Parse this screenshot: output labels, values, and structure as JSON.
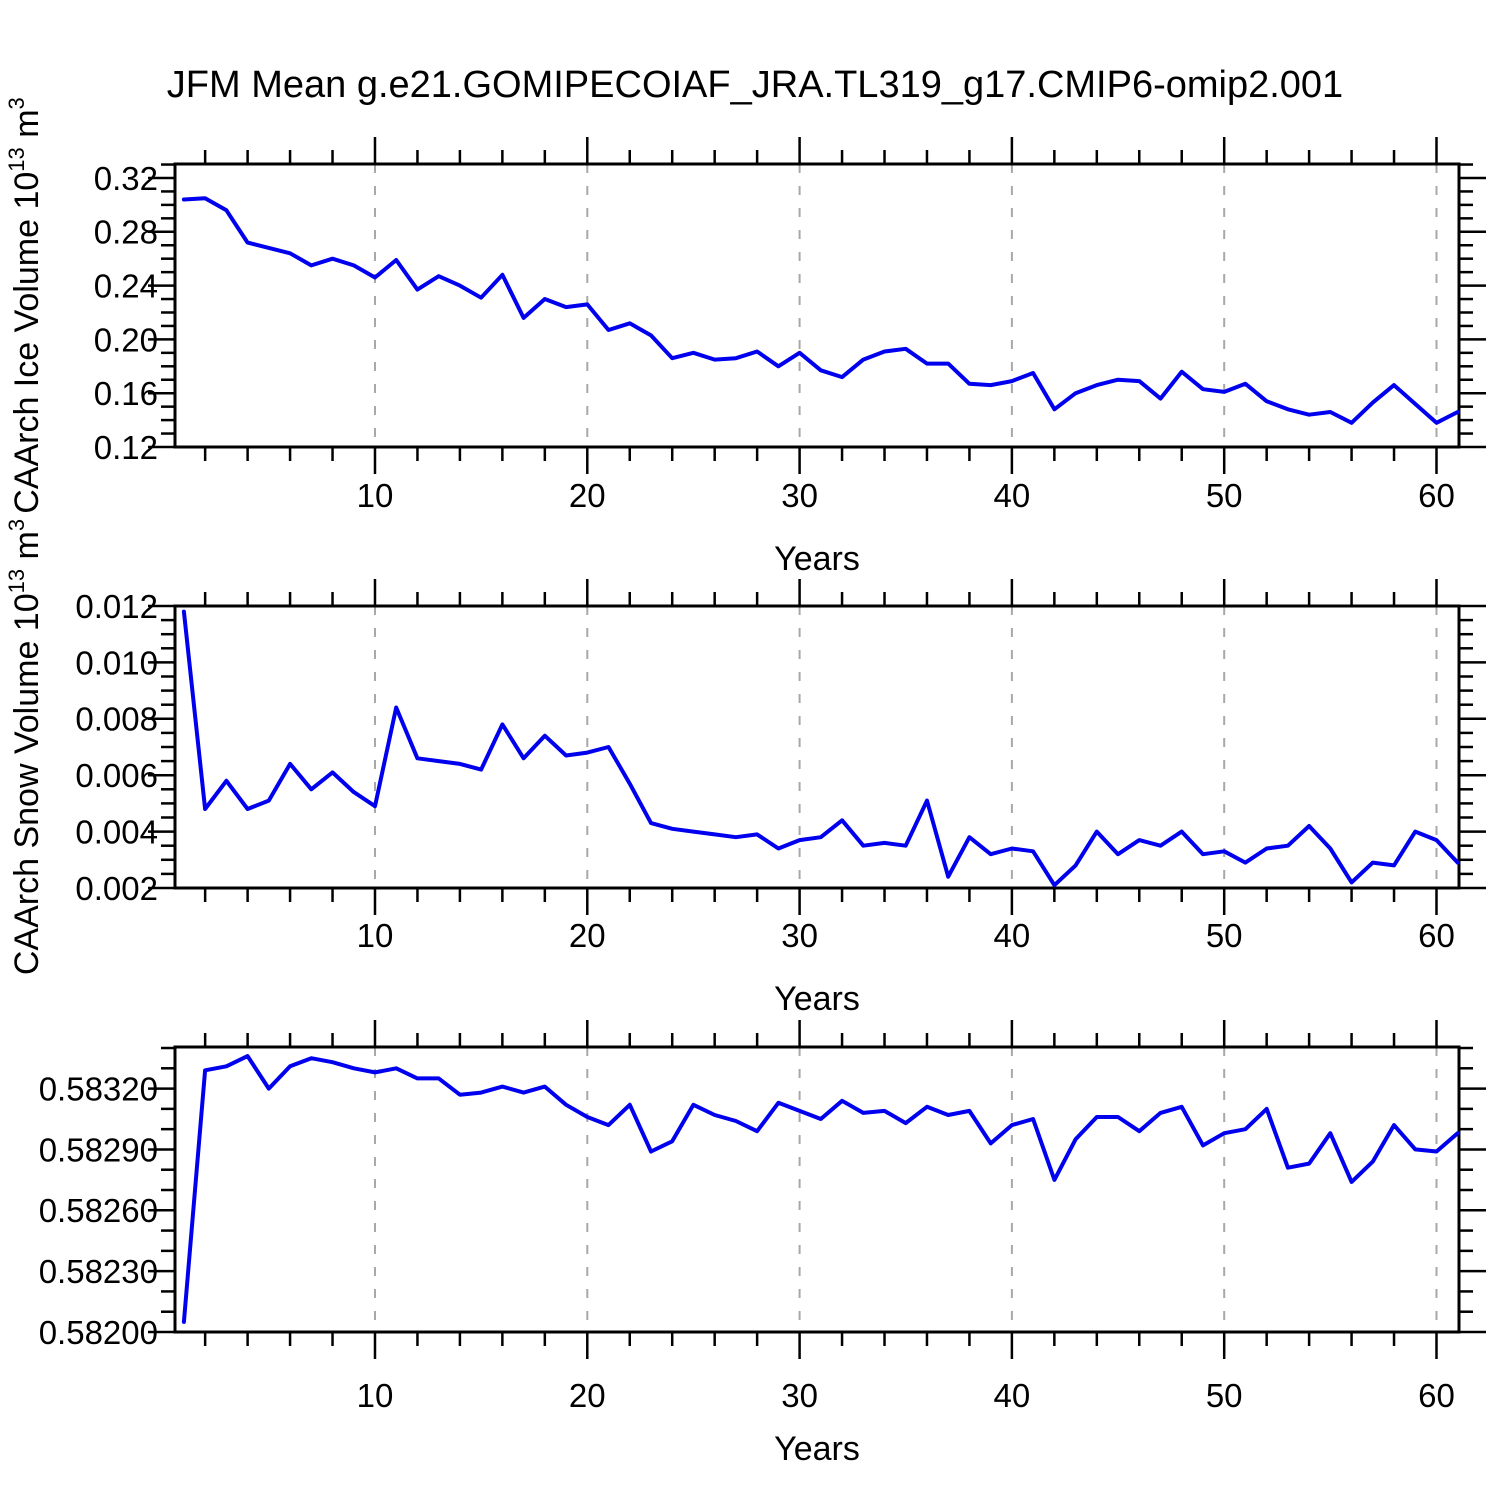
{
  "title": "JFM Mean g.e21.GOMIPECOIAF_JRA.TL319_g17.CMIP6-omip2.001",
  "colors": {
    "line": "#0000EE",
    "grid": "#A8A8A8",
    "frame": "#000000",
    "text": "#000000"
  },
  "chart_data": [
    {
      "type": "line",
      "ylabel": "CAArch Ice Volume 10¹³ m³",
      "ylabel_parts": [
        {
          "text": "CAArch Ice Volume 10",
          "sup": false
        },
        {
          "text": "13",
          "sup": true
        },
        {
          "text": " m",
          "sup": false
        },
        {
          "text": "3",
          "sup": true
        }
      ],
      "xlabel": "Years",
      "x_first_year": 1,
      "values": [
        0.304,
        0.305,
        0.296,
        0.272,
        0.268,
        0.264,
        0.255,
        0.26,
        0.255,
        0.246,
        0.259,
        0.237,
        0.247,
        0.24,
        0.231,
        0.248,
        0.216,
        0.23,
        0.224,
        0.226,
        0.207,
        0.212,
        0.203,
        0.186,
        0.19,
        0.185,
        0.186,
        0.191,
        0.18,
        0.19,
        0.177,
        0.172,
        0.185,
        0.191,
        0.193,
        0.182,
        0.182,
        0.167,
        0.166,
        0.169,
        0.175,
        0.148,
        0.16,
        0.166,
        0.17,
        0.169,
        0.156,
        0.176,
        0.163,
        0.161,
        0.167,
        0.154,
        0.148,
        0.144,
        0.146,
        0.138,
        0.153,
        0.166,
        0.152,
        0.138,
        0.146
      ],
      "ylim": [
        0.12,
        0.3304
      ],
      "yticks": [
        0.12,
        0.16,
        0.2,
        0.24,
        0.28,
        0.32
      ],
      "ytick_labels": [
        "0.12",
        "0.16",
        "0.20",
        "0.24",
        "0.28",
        "0.32"
      ],
      "yminor_step": 0.01,
      "xlim": [
        0.58,
        61.06
      ],
      "xticks": [
        10,
        20,
        30,
        40,
        50,
        60
      ],
      "xtick_labels": [
        "10",
        "20",
        "30",
        "40",
        "50",
        "60"
      ],
      "xminor_step": 2,
      "grid": "vertical-dashed"
    },
    {
      "type": "line",
      "ylabel": "CAArch Snow Volume 10¹³ m³",
      "ylabel_parts": [
        {
          "text": "CAArch Snow Volume 10",
          "sup": false
        },
        {
          "text": "13",
          "sup": true
        },
        {
          "text": " m",
          "sup": false
        },
        {
          "text": "3",
          "sup": true
        }
      ],
      "xlabel": "Years",
      "x_first_year": 1,
      "values": [
        0.0118,
        0.0048,
        0.0058,
        0.0048,
        0.0051,
        0.0064,
        0.0055,
        0.0061,
        0.0054,
        0.0049,
        0.0084,
        0.0066,
        0.0065,
        0.0064,
        0.0062,
        0.0078,
        0.0066,
        0.0074,
        0.0067,
        0.0068,
        0.007,
        0.0057,
        0.0043,
        0.0041,
        0.004,
        0.0039,
        0.0038,
        0.0039,
        0.0034,
        0.0037,
        0.0038,
        0.0044,
        0.0035,
        0.0036,
        0.0035,
        0.0051,
        0.0024,
        0.0038,
        0.0032,
        0.0034,
        0.0033,
        0.0021,
        0.0028,
        0.004,
        0.0032,
        0.0037,
        0.0035,
        0.004,
        0.0032,
        0.0033,
        0.0029,
        0.0034,
        0.0035,
        0.0042,
        0.0034,
        0.0022,
        0.0029,
        0.0028,
        0.004,
        0.0037,
        0.0029
      ],
      "ylim": [
        0.002,
        0.012
      ],
      "yticks": [
        0.002,
        0.004,
        0.006,
        0.008,
        0.01,
        0.012
      ],
      "ytick_labels": [
        "0.002",
        "0.004",
        "0.006",
        "0.008",
        "0.010",
        "0.012"
      ],
      "yminor_step": 0.0005,
      "xlim": [
        0.58,
        61.06
      ],
      "xticks": [
        10,
        20,
        30,
        40,
        50,
        60
      ],
      "xtick_labels": [
        "10",
        "20",
        "30",
        "40",
        "50",
        "60"
      ],
      "xminor_step": 2,
      "grid": "vertical-dashed"
    },
    {
      "type": "line",
      "ylabel": null,
      "ylabel_parts": [],
      "xlabel": "Years",
      "x_first_year": 1,
      "values": [
        0.58205,
        0.58329,
        0.58331,
        0.58336,
        0.5832,
        0.58331,
        0.58335,
        0.58333,
        0.5833,
        0.58328,
        0.5833,
        0.58325,
        0.58325,
        0.58317,
        0.58318,
        0.58321,
        0.58318,
        0.58321,
        0.58312,
        0.58306,
        0.58302,
        0.58312,
        0.58289,
        0.58294,
        0.58312,
        0.58307,
        0.58304,
        0.58299,
        0.58313,
        0.58309,
        0.58305,
        0.58314,
        0.58308,
        0.58309,
        0.58303,
        0.58311,
        0.58307,
        0.58309,
        0.58293,
        0.58302,
        0.58305,
        0.58275,
        0.58295,
        0.58306,
        0.58306,
        0.58299,
        0.58308,
        0.58311,
        0.58292,
        0.58298,
        0.583,
        0.5831,
        0.58281,
        0.58283,
        0.58298,
        0.58274,
        0.58284,
        0.58302,
        0.5829,
        0.58289,
        0.58298
      ],
      "ylim": [
        0.582,
        0.583405
      ],
      "yticks": [
        0.582,
        0.5823,
        0.5826,
        0.5829,
        0.5832
      ],
      "ytick_labels": [
        "0.58200",
        "0.58230",
        "0.58260",
        "0.58290",
        "0.58320"
      ],
      "yminor_step": 0.0001,
      "xlim": [
        0.58,
        61.06
      ],
      "xticks": [
        10,
        20,
        30,
        40,
        50,
        60
      ],
      "xtick_labels": [
        "10",
        "20",
        "30",
        "40",
        "50",
        "60"
      ],
      "xminor_step": 2,
      "grid": "vertical-dashed"
    }
  ]
}
